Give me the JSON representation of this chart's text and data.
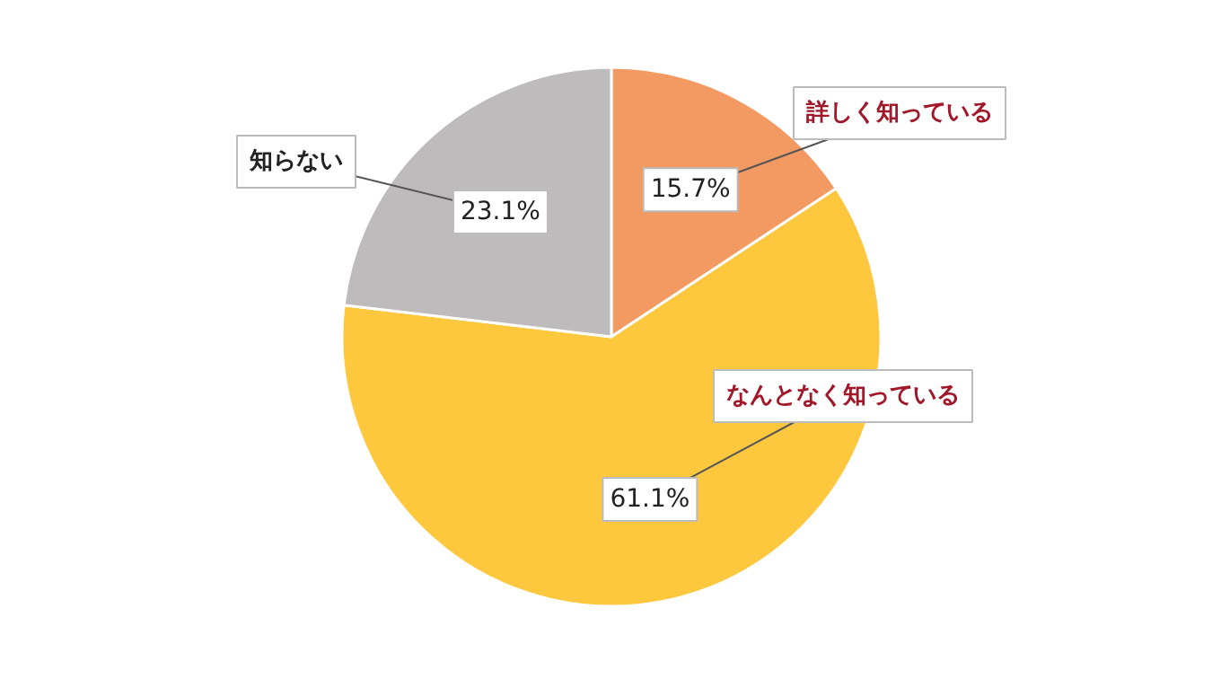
{
  "chart_data": {
    "type": "pie",
    "categories": [
      "詳しく知っている",
      "なんとなく知っている",
      "知らない"
    ],
    "values": [
      15.7,
      61.1,
      23.1
    ],
    "colors": [
      "#f29a62",
      "#fdc73e",
      "#bdbbbc"
    ],
    "value_labels": [
      "15.7%",
      "61.1%",
      "23.1%"
    ]
  }
}
